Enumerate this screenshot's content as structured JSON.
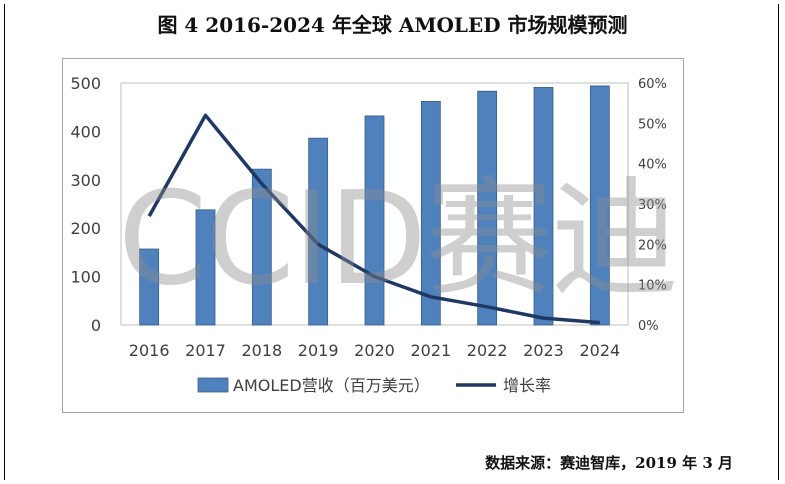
{
  "figure_title": "图 4   2016-2024 年全球 AMOLED 市场规模预测",
  "source_note": "数据来源：赛迪智库，2019 年 3 月",
  "watermark": "CCID赛迪",
  "colors": {
    "bar": "#4f81bd",
    "bar_edge": "#385d8a",
    "line": "#1f3864",
    "axis_text": "#404040"
  },
  "chart_data": {
    "type": "bar",
    "categories": [
      "2016",
      "2017",
      "2018",
      "2019",
      "2020",
      "2021",
      "2022",
      "2023",
      "2024"
    ],
    "series": [
      {
        "name": "AMOLED营收（百万美元）",
        "type": "bar",
        "axis": "left",
        "values": [
          157,
          238,
          322,
          386,
          432,
          462,
          483,
          491,
          494
        ]
      },
      {
        "name": "增长率",
        "type": "line",
        "axis": "right",
        "values": [
          0.27,
          0.52,
          0.35,
          0.2,
          0.12,
          0.07,
          0.045,
          0.017,
          0.006
        ]
      }
    ],
    "y_left": {
      "min": 0,
      "max": 500,
      "ticks": [
        "0",
        "100",
        "200",
        "300",
        "400",
        "500"
      ]
    },
    "y_right": {
      "min": 0,
      "max": 0.6,
      "ticks": [
        "0%",
        "10%",
        "20%",
        "30%",
        "40%",
        "50%",
        "60%"
      ]
    },
    "legend_position": "bottom",
    "grid": false
  }
}
